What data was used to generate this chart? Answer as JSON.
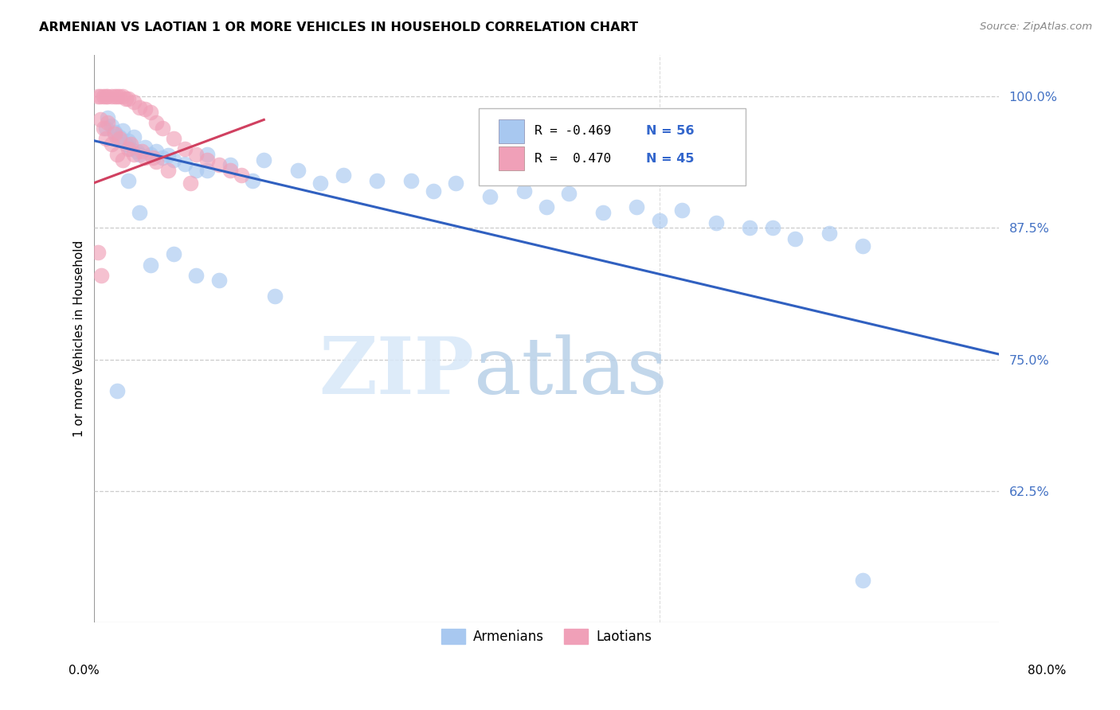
{
  "title": "ARMENIAN VS LAOTIAN 1 OR MORE VEHICLES IN HOUSEHOLD CORRELATION CHART",
  "source": "Source: ZipAtlas.com",
  "ylabel": "1 or more Vehicles in Household",
  "xmin": 0.0,
  "xmax": 80.0,
  "ymin": 0.5,
  "ymax": 1.04,
  "armenian_color": "#A8C8F0",
  "laotian_color": "#F0A0B8",
  "armenian_line_color": "#3060C0",
  "laotian_line_color": "#D04060",
  "legend_armenian_R": "R = -0.469",
  "legend_armenian_N": "N = 56",
  "legend_laotian_R": "R =  0.470",
  "legend_laotian_N": "N = 45",
  "watermark_zip": "ZIP",
  "watermark_atlas": "atlas",
  "ytick_vals": [
    0.625,
    0.75,
    0.875,
    1.0
  ],
  "ytick_labels": [
    "62.5%",
    "75.0%",
    "87.5%",
    "100.0%"
  ],
  "armenian_trend_x": [
    0.0,
    80.0
  ],
  "armenian_trend_y": [
    0.958,
    0.755
  ],
  "laotian_trend_x": [
    0.0,
    15.0
  ],
  "laotian_trend_y": [
    0.918,
    0.978
  ],
  "dot_size": 200,
  "armenian_x": [
    1.0,
    1.2,
    1.5,
    1.8,
    2.0,
    2.2,
    2.5,
    2.8,
    3.0,
    3.2,
    3.5,
    3.8,
    4.0,
    4.5,
    5.0,
    5.5,
    6.0,
    6.5,
    7.0,
    8.0,
    9.0,
    10.0,
    12.0,
    15.0,
    18.0,
    22.0,
    28.0,
    32.0,
    38.0,
    42.0,
    48.0,
    52.0,
    55.0,
    60.0,
    65.0,
    25.0,
    30.0,
    35.0,
    40.0,
    45.0,
    50.0,
    58.0,
    62.0,
    68.0,
    20.0,
    10.0,
    14.0,
    2.0,
    3.0,
    4.0,
    5.0,
    7.0,
    9.0,
    11.0,
    16.0,
    68.0
  ],
  "armenian_y": [
    0.97,
    0.98,
    0.972,
    0.966,
    0.96,
    0.962,
    0.968,
    0.955,
    0.958,
    0.95,
    0.962,
    0.948,
    0.945,
    0.952,
    0.945,
    0.948,
    0.942,
    0.944,
    0.94,
    0.936,
    0.93,
    0.945,
    0.935,
    0.94,
    0.93,
    0.925,
    0.92,
    0.918,
    0.91,
    0.908,
    0.895,
    0.892,
    0.88,
    0.875,
    0.87,
    0.92,
    0.91,
    0.905,
    0.895,
    0.89,
    0.882,
    0.875,
    0.865,
    0.858,
    0.918,
    0.93,
    0.92,
    0.72,
    0.92,
    0.89,
    0.84,
    0.85,
    0.83,
    0.825,
    0.81,
    0.54
  ],
  "laotian_x": [
    0.3,
    0.5,
    0.8,
    1.0,
    1.2,
    1.5,
    1.8,
    2.0,
    2.2,
    2.5,
    2.8,
    3.0,
    3.5,
    4.0,
    4.5,
    5.0,
    5.5,
    6.0,
    7.0,
    8.0,
    9.0,
    10.0,
    11.0,
    12.0,
    13.0,
    1.0,
    1.5,
    2.0,
    2.5,
    3.0,
    3.5,
    4.5,
    5.5,
    0.5,
    0.8,
    1.2,
    1.8,
    2.2,
    3.2,
    4.2,
    5.2,
    6.5,
    8.5,
    0.3,
    0.6
  ],
  "laotian_y": [
    1.0,
    1.0,
    1.0,
    1.0,
    1.0,
    1.0,
    1.0,
    1.0,
    1.0,
    1.0,
    0.998,
    0.998,
    0.995,
    0.99,
    0.988,
    0.985,
    0.975,
    0.97,
    0.96,
    0.95,
    0.945,
    0.94,
    0.935,
    0.93,
    0.925,
    0.96,
    0.955,
    0.945,
    0.94,
    0.95,
    0.945,
    0.942,
    0.938,
    0.978,
    0.97,
    0.975,
    0.965,
    0.96,
    0.955,
    0.948,
    0.942,
    0.93,
    0.918,
    0.852,
    0.83
  ]
}
